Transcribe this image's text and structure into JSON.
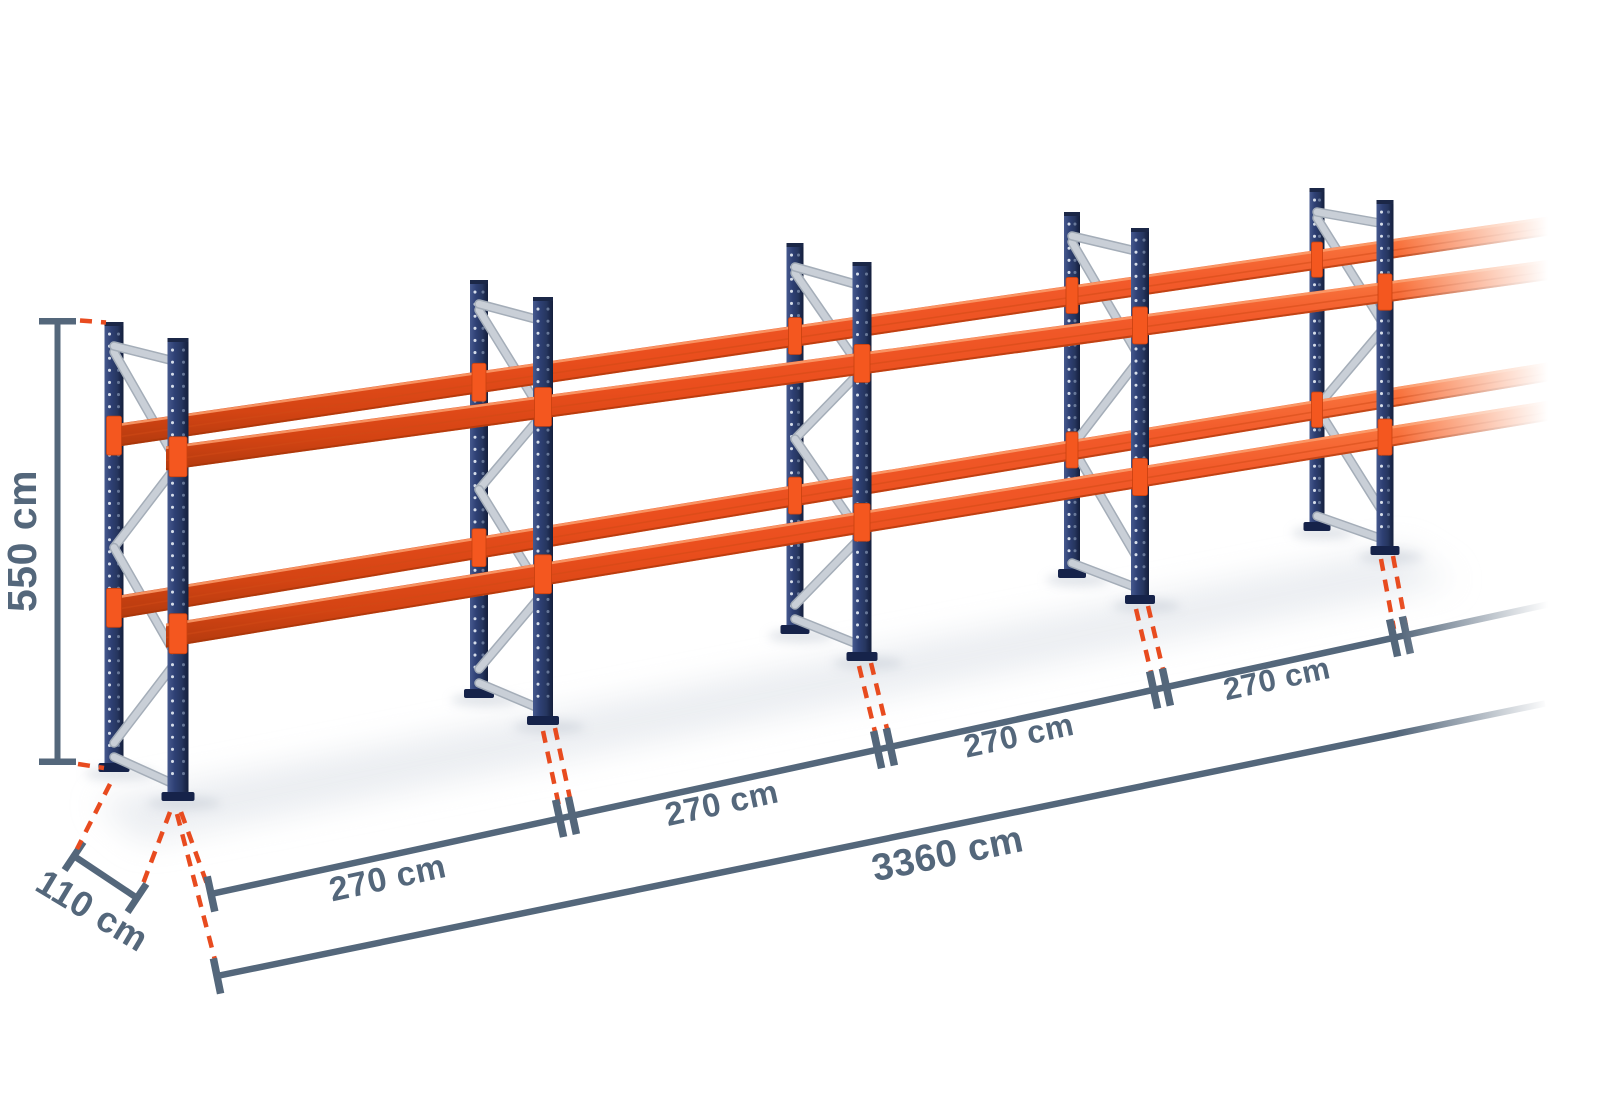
{
  "diagram": {
    "labels": {
      "height": "550 cm",
      "depth": "110 cm",
      "bays": [
        "270 cm",
        "270 cm",
        "270 cm",
        "270 cm"
      ],
      "total_length": "3360 cm"
    },
    "colors": {
      "dimension_slate": "#54677b",
      "projection_red": "#e84b1f",
      "beam_orange": "#f25a2a",
      "beam_highlight": "#fb8f5b",
      "beam_shadow": "#b23a0e",
      "connector_orange": "#f4571f",
      "upright_navy": "#2e4074",
      "upright_dark": "#141f3c",
      "brace_silver": "#c9cfd7",
      "background": "#ffffff"
    },
    "structure": {
      "frames_visible": 5,
      "beam_levels": 2
    }
  }
}
